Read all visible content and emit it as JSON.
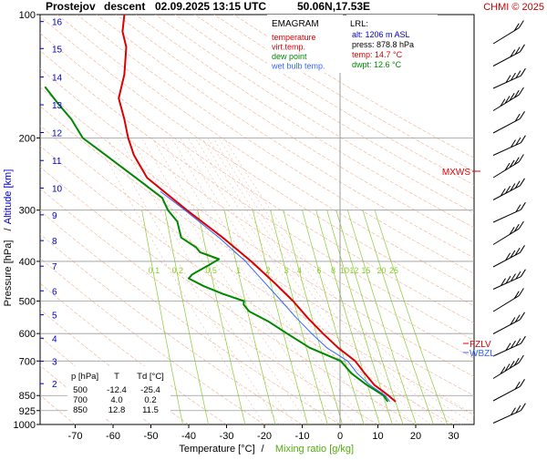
{
  "header": {
    "station": "Prostejov",
    "mode": "descent",
    "datetime": "02.09.2025 13:15 UTC",
    "coords": "50.06N,17.53E",
    "credit": "CHMI © 2025"
  },
  "legend": {
    "title": "EMAGRAM",
    "items": [
      {
        "label": "temperature",
        "color": "#dd0000"
      },
      {
        "label": "virt.temp.",
        "color": "#dd0000"
      },
      {
        "label": "dew point",
        "color": "#008800"
      },
      {
        "label": "wet bulb temp.",
        "color": "#3366ff"
      }
    ]
  },
  "lrl": {
    "title": "LRL:",
    "alt": "alt: 1206 m ASL",
    "press": "press: 878.8 hPa",
    "temp": "temp: 14.7 °C",
    "dwpt": "dwpt: 12.6 °C"
  },
  "table": {
    "headers": [
      "p [hPa]",
      "T",
      "Td [°C]"
    ],
    "rows": [
      [
        "500",
        "-12.4",
        "-25.4"
      ],
      [
        "700",
        "4.0",
        "0.2"
      ],
      [
        "850",
        "12.8",
        "11.5"
      ]
    ]
  },
  "markers": {
    "mxws": "MXWS",
    "fzlv": "FZLV",
    "wbzl": "WBZL"
  },
  "colors": {
    "temperature": "#dd0000",
    "dewpoint": "#008800",
    "wetbulb": "#3366ff",
    "mixing": "#88cc33",
    "isotherm": "#999999",
    "dry_adiabat": "#f0b090",
    "moist_adiabat": "#e8a080",
    "altitude_axis": "#0000cc"
  },
  "chart_data": {
    "type": "line",
    "xlabel": "Temperature [°C]",
    "xlabel2": "Mixing ratio [g/kg]",
    "ylabel": "Pressure [hPa]",
    "ylabel2": "Altitude [km]",
    "xlim": [
      -80,
      35
    ],
    "ylim": [
      1000,
      100
    ],
    "y_scale": "log",
    "x_ticks": [
      -70,
      -60,
      -50,
      -40,
      -30,
      -20,
      -10,
      0,
      10,
      20,
      30
    ],
    "pressure_ticks": [
      100,
      200,
      300,
      400,
      500,
      600,
      700,
      850,
      925,
      1000
    ],
    "altitude_ticks_km": [
      {
        "km": 2,
        "p": 795
      },
      {
        "km": 3,
        "p": 701
      },
      {
        "km": 4,
        "p": 616
      },
      {
        "km": 5,
        "p": 540
      },
      {
        "km": 6,
        "p": 472
      },
      {
        "km": 7,
        "p": 411
      },
      {
        "km": 8,
        "p": 356
      },
      {
        "km": 9,
        "p": 308
      },
      {
        "km": 10,
        "p": 265
      },
      {
        "km": 11,
        "p": 227
      },
      {
        "km": 12,
        "p": 194
      },
      {
        "km": 13,
        "p": 166
      },
      {
        "km": 14,
        "p": 142
      },
      {
        "km": 15,
        "p": 121
      },
      {
        "km": 16,
        "p": 104
      }
    ],
    "mixing_ratio_labels": [
      "0.1",
      "0.2",
      "0.5",
      "1",
      "2",
      "3",
      "4",
      "6",
      "8",
      "10",
      "12",
      "15",
      "20",
      "25"
    ],
    "series": [
      {
        "name": "temperature",
        "points": [
          [
            880,
            14.7
          ],
          [
            850,
            12.8
          ],
          [
            800,
            9.0
          ],
          [
            750,
            6.5
          ],
          [
            700,
            4.0
          ],
          [
            650,
            -0.5
          ],
          [
            600,
            -4.5
          ],
          [
            550,
            -8.5
          ],
          [
            500,
            -12.4
          ],
          [
            450,
            -17.5
          ],
          [
            400,
            -23.5
          ],
          [
            350,
            -31.0
          ],
          [
            300,
            -40.5
          ],
          [
            250,
            -51.0
          ],
          [
            220,
            -54.5
          ],
          [
            200,
            -56.0
          ],
          [
            180,
            -57.0
          ],
          [
            160,
            -58.5
          ],
          [
            140,
            -57.0
          ],
          [
            120,
            -56.5
          ],
          [
            110,
            -57.5
          ],
          [
            100,
            -57.0
          ]
        ]
      },
      {
        "name": "dew point",
        "points": [
          [
            880,
            12.6
          ],
          [
            850,
            11.5
          ],
          [
            800,
            7.0
          ],
          [
            750,
            3.0
          ],
          [
            700,
            0.2
          ],
          [
            650,
            -8.0
          ],
          [
            600,
            -14.0
          ],
          [
            560,
            -19.0
          ],
          [
            530,
            -24.0
          ],
          [
            510,
            -25.5
          ],
          [
            500,
            -25.4
          ],
          [
            480,
            -31.0
          ],
          [
            460,
            -36.0
          ],
          [
            440,
            -40.0
          ],
          [
            430,
            -39.0
          ],
          [
            410,
            -35.0
          ],
          [
            395,
            -32.0
          ],
          [
            380,
            -37.0
          ],
          [
            370,
            -38.0
          ],
          [
            350,
            -42.0
          ],
          [
            320,
            -43.0
          ],
          [
            300,
            -45.5
          ],
          [
            280,
            -47.0
          ],
          [
            250,
            -54.0
          ],
          [
            220,
            -62.0
          ],
          [
            200,
            -68.0
          ],
          [
            180,
            -71.0
          ],
          [
            165,
            -74.5
          ],
          [
            150,
            -78.0
          ]
        ]
      },
      {
        "name": "wet bulb temp.",
        "points": [
          [
            880,
            13.2
          ],
          [
            850,
            11.9
          ],
          [
            800,
            7.8
          ],
          [
            750,
            4.5
          ],
          [
            700,
            2.0
          ],
          [
            650,
            -3.5
          ],
          [
            600,
            -7.5
          ],
          [
            550,
            -11.5
          ],
          [
            500,
            -15.5
          ],
          [
            450,
            -20.0
          ],
          [
            400,
            -25.0
          ],
          [
            350,
            -32.0
          ],
          [
            300,
            -41.0
          ],
          [
            270,
            -47.5
          ]
        ]
      }
    ]
  }
}
